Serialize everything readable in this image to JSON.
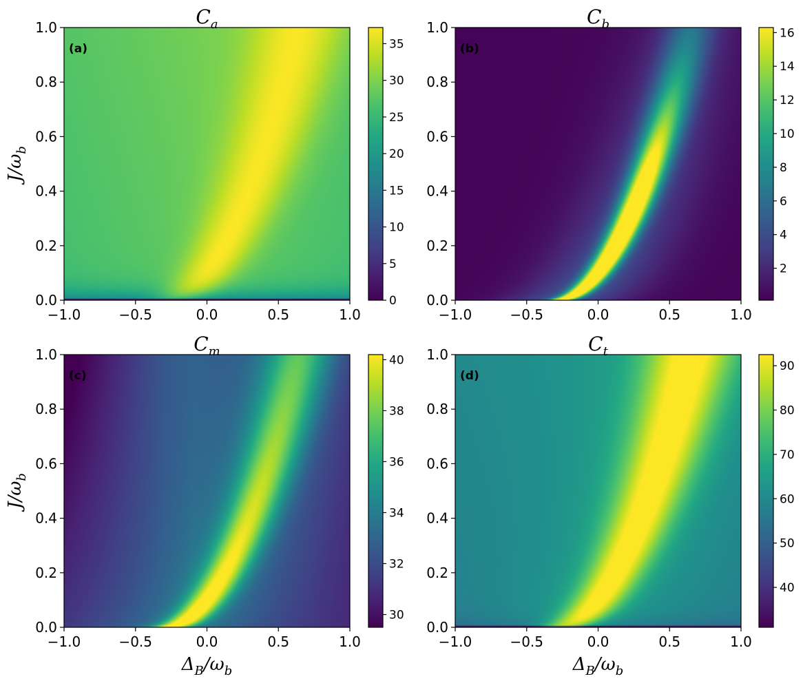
{
  "chart_data": [
    {
      "type": "heatmap",
      "panel_label": "(a)",
      "title": "C_a",
      "title_main": "C",
      "title_sub": "a",
      "xlabel": "",
      "ylabel": "J/ω_b",
      "ylabel_main": "J/ω",
      "ylabel_sub": "b",
      "xlim": [
        -1.0,
        1.0
      ],
      "ylim": [
        0.0,
        1.0
      ],
      "xticks": [
        "−1.0",
        "−0.5",
        "0.0",
        "0.5",
        "1.0"
      ],
      "yticks": [
        "0.0",
        "0.2",
        "0.4",
        "0.6",
        "0.8",
        "1.0"
      ],
      "colorbar": {
        "range": [
          0,
          37.2
        ],
        "ticks": [
          0,
          5,
          10,
          15,
          20,
          25,
          30,
          35
        ]
      },
      "colormap": "viridis",
      "field": {
        "ridge": "x = -0.3 + 0.95*sqrt(y)",
        "ridge_x_at_y0": -0.3,
        "ridge_width": 0.2,
        "background_level": 28,
        "peak_level": 37,
        "bottom_edge_level": 0
      }
    },
    {
      "type": "heatmap",
      "panel_label": "(b)",
      "title": "C_b",
      "title_main": "C",
      "title_sub": "b",
      "xlabel": "",
      "ylabel": "",
      "xlim": [
        -1.0,
        1.0
      ],
      "ylim": [
        0.0,
        1.0
      ],
      "xticks": [
        "−1.0",
        "−0.5",
        "0.0",
        "0.5",
        "1.0"
      ],
      "yticks": [
        "0.0",
        "0.2",
        "0.4",
        "0.6",
        "0.8",
        "1.0"
      ],
      "colorbar": {
        "range": [
          0.1,
          16.3
        ],
        "ticks": [
          2,
          4,
          6,
          8,
          10,
          12,
          14,
          16
        ]
      },
      "colormap": "viridis",
      "field": {
        "ridge": "x = -0.3 + 0.95*sqrt(y)",
        "ridge_x_at_y0": -0.3,
        "peak_level": 16,
        "peak_near_y": 0.22,
        "top_ridge_level": 10,
        "background_level": 0.5
      }
    },
    {
      "type": "heatmap",
      "panel_label": "(c)",
      "title": "C_m",
      "title_main": "C",
      "title_sub": "m",
      "xlabel": "Δ_B/ω_b",
      "xlabel_main": "Δ",
      "xlabel_sub1": "B",
      "xlabel_mid": "/ω",
      "xlabel_sub2": "b",
      "ylabel": "J/ω_b",
      "ylabel_main": "J/ω",
      "ylabel_sub": "b",
      "xlim": [
        -1.0,
        1.0
      ],
      "ylim": [
        0.0,
        1.0
      ],
      "xticks": [
        "−1.0",
        "−0.5",
        "0.0",
        "0.5",
        "1.0"
      ],
      "yticks": [
        "0.0",
        "0.2",
        "0.4",
        "0.6",
        "0.8",
        "1.0"
      ],
      "colorbar": {
        "range": [
          29.5,
          40.2
        ],
        "ticks": [
          30,
          32,
          34,
          36,
          38,
          40
        ]
      },
      "colormap": "viridis",
      "field": {
        "ridge": "x = -0.3 + 0.95*sqrt(y)",
        "ridge_x_at_y0": -0.3,
        "peak_level": 40,
        "top_ridge_level": 37,
        "background_level": 32,
        "top_left_level": 29.7
      }
    },
    {
      "type": "heatmap",
      "panel_label": "(d)",
      "title": "C_t",
      "title_main": "C",
      "title_sub": "t",
      "xlabel": "Δ_B/ω_b",
      "xlabel_main": "Δ",
      "xlabel_sub1": "B",
      "xlabel_mid": "/ω",
      "xlabel_sub2": "b",
      "ylabel": "",
      "xlim": [
        -1.0,
        1.0
      ],
      "ylim": [
        0.0,
        1.0
      ],
      "xticks": [
        "−1.0",
        "−0.5",
        "0.0",
        "0.5",
        "1.0"
      ],
      "yticks": [
        "0.0",
        "0.2",
        "0.4",
        "0.6",
        "0.8",
        "1.0"
      ],
      "colorbar": {
        "range": [
          31,
          92.5
        ],
        "ticks": [
          40,
          50,
          60,
          70,
          80,
          90
        ]
      },
      "colormap": "viridis",
      "field": {
        "ridge": "x = -0.3 + 0.95*sqrt(y)",
        "ridge_x_at_y0": -0.3,
        "ridge_width": 0.2,
        "background_level": 62,
        "peak_level": 92,
        "bottom_edge_level": 31
      }
    }
  ]
}
